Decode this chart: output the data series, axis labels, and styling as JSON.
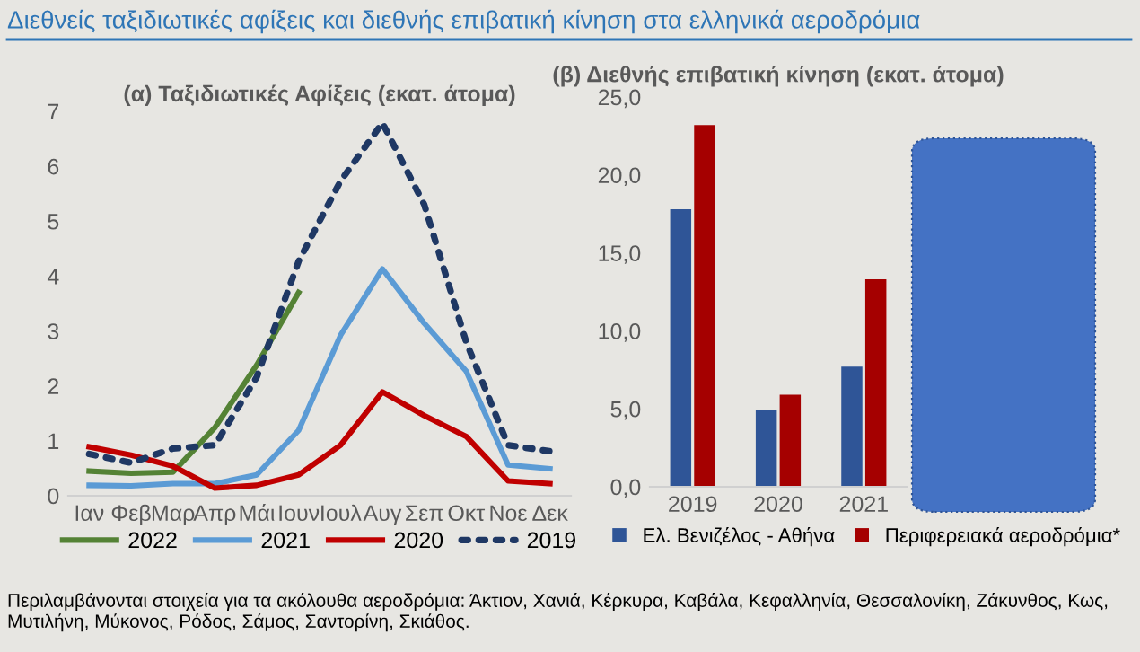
{
  "chart_data": [
    {
      "type": "other",
      "title": "Διεθνείς ταξιδιωτικές αφίξεις και διεθνής επιβατική κίνηση στα ελληνικά αεροδρόμια",
      "color": "#2e75b6",
      "annotations": [
        "Περιλαμβάνονται στοιχεία για τα ακόλουθα αεροδρόμια: Άκτιον, Χανιά, Κέρκυρα, Καβάλα, Κεφαλληνία, Θεσσαλονίκη, Ζάκυνθος, Κως, Μυτιλήνη, Μύκονος, Ρόδος, Σάμος, Σαντορίνη, Σκιάθος."
      ]
    },
    {
      "type": "line",
      "title": "(α) Ταξιδιωτικές Αφίξεις (εκατ. άτομα)",
      "categories": [
        "Ιαν",
        "Φεβ",
        "Μαρ",
        "Απρ",
        "Μάι",
        "Ιουν",
        "Ιουλ",
        "Αυγ",
        "Σεπ",
        "Οκτ",
        "Νοε",
        "Δεκ"
      ],
      "series": [
        {
          "name": "2022",
          "color": "#548235",
          "line_style": "solid",
          "values": [
            0.45,
            0.41,
            0.43,
            1.24,
            2.38,
            3.7,
            null,
            null,
            null,
            null,
            null,
            null
          ]
        },
        {
          "name": "2021",
          "color": "#5b9bd5",
          "line_style": "solid",
          "values": [
            0.19,
            0.18,
            0.22,
            0.22,
            0.38,
            1.19,
            2.92,
            4.13,
            3.14,
            2.27,
            0.56,
            0.49
          ]
        },
        {
          "name": "2020",
          "color": "#c00000",
          "line_style": "solid",
          "values": [
            0.89,
            0.74,
            0.54,
            0.14,
            0.19,
            0.38,
            0.92,
            1.89,
            1.46,
            1.08,
            0.27,
            0.22
          ]
        },
        {
          "name": "2019",
          "color": "#1f3864",
          "line_style": "dotted",
          "values": [
            0.76,
            0.6,
            0.86,
            0.92,
            2.16,
            4.27,
            5.73,
            6.79,
            5.3,
            2.8,
            0.92,
            0.81
          ]
        }
      ],
      "ylim": [
        0,
        7
      ],
      "yticks": [
        0,
        1,
        2,
        3,
        4,
        5,
        6,
        7
      ],
      "grid": false,
      "legend": "bottom"
    },
    {
      "type": "bar",
      "title": "(β) Διεθνής επιβατική κίνηση (εκατ. άτομα)",
      "categories": [
        "2019",
        "2020",
        "2021"
      ],
      "series": [
        {
          "name": "Ελ. Βενιζέλος - Αθήνα",
          "color": "#2f5597",
          "values": [
            17.8,
            4.9,
            7.7
          ]
        },
        {
          "name": "Περιφερειακά αεροδρόμια*",
          "color": "#a50000",
          "values": [
            23.2,
            5.9,
            13.3
          ]
        }
      ],
      "ylim": [
        0,
        25
      ],
      "yticks": [
        {
          "value": 0,
          "label": "0,0"
        },
        {
          "value": 5,
          "label": "5,0"
        },
        {
          "value": 10,
          "label": "10,0"
        },
        {
          "value": 15,
          "label": "15,0"
        },
        {
          "value": 20,
          "label": "20,0"
        },
        {
          "value": 25,
          "label": "25,0"
        }
      ],
      "grid": false,
      "legend": "bottom"
    }
  ]
}
